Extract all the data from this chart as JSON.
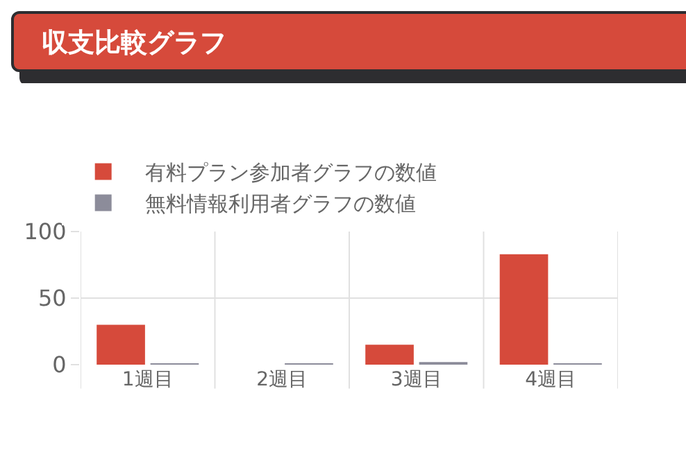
{
  "chart_data": {
    "type": "bar",
    "title": "収支比較グラフ",
    "categories": [
      "1週目",
      "2週目",
      "3週目",
      "4週目"
    ],
    "series": [
      {
        "name": "有料プラン参加者グラフの数値",
        "color": "#d64a3b",
        "values": [
          30,
          0,
          15,
          83
        ]
      },
      {
        "name": "無料情報利用者グラフの数値",
        "color": "#8c8c9a",
        "values": [
          1,
          1,
          2,
          1
        ]
      }
    ],
    "ylim": [
      0,
      100
    ],
    "yticks": [
      0,
      50,
      100
    ],
    "grid": true,
    "legend": "top"
  }
}
